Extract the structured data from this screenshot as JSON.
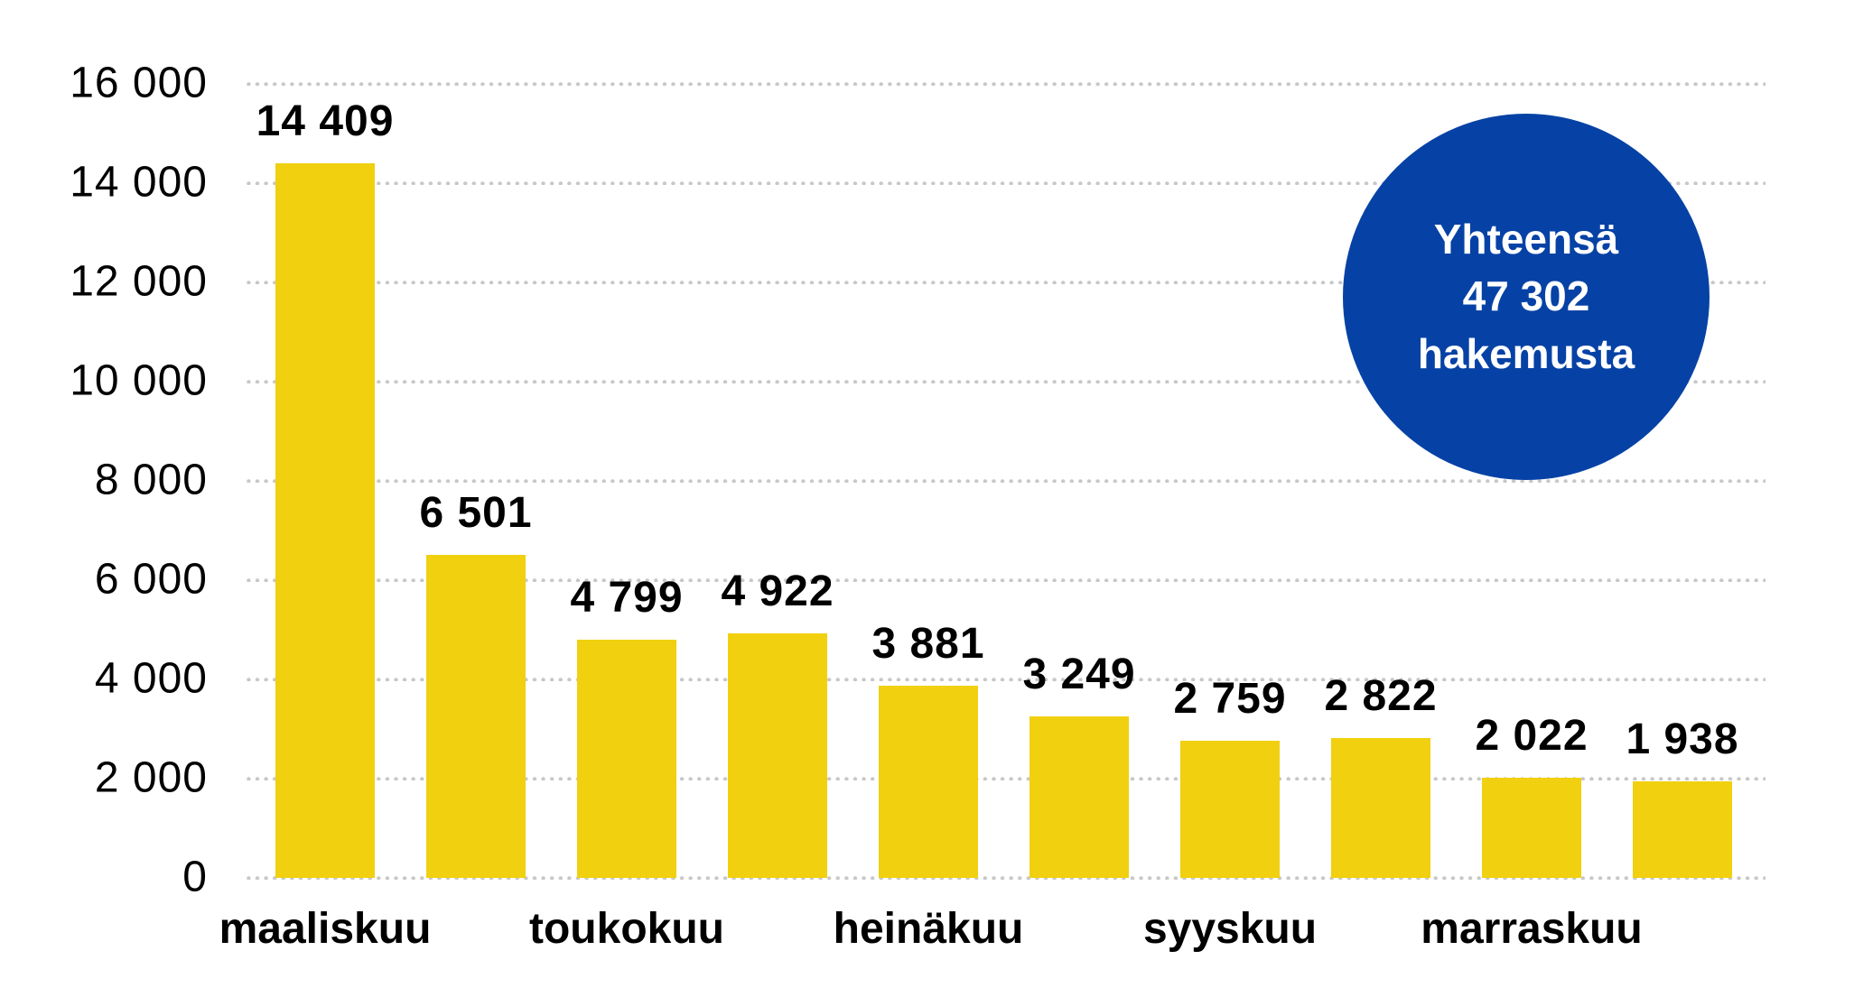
{
  "chart_data": {
    "type": "bar",
    "title": "",
    "bar_color": "#F1D00F",
    "grid_color": "#C7C7C7",
    "text_color": "#000000",
    "background": "#FFFFFF",
    "ylim": [
      0,
      16000
    ],
    "y_tick_step": 2000,
    "grid": "dotted-horizontal",
    "legend": "none",
    "y_tick_labels": [
      "16 000",
      "14 000",
      "12 000",
      "10 000",
      "8 000",
      "6 000",
      "4 000",
      "2 000",
      "0"
    ],
    "bars": [
      {
        "value": 14409,
        "label": "14 409"
      },
      {
        "value": 6501,
        "label": "6 501"
      },
      {
        "value": 4799,
        "label": "4 799"
      },
      {
        "value": 4922,
        "label": "4 922"
      },
      {
        "value": 3881,
        "label": "3 881"
      },
      {
        "value": 3249,
        "label": "3 249"
      },
      {
        "value": 2759,
        "label": "2 759"
      },
      {
        "value": 2822,
        "label": "2 822"
      },
      {
        "value": 2022,
        "label": "2 022"
      },
      {
        "value": 1938,
        "label": "1 938"
      }
    ],
    "x_ticks": [
      {
        "bar_index": 0,
        "label": "maaliskuu"
      },
      {
        "bar_index": 2,
        "label": "toukokuu"
      },
      {
        "bar_index": 4,
        "label": "heinäkuu"
      },
      {
        "bar_index": 6,
        "label": "syyskuu"
      },
      {
        "bar_index": 8,
        "label": "marraskuu"
      }
    ],
    "annotation": {
      "shape": "circle",
      "total": 47302,
      "color": "#0642A5",
      "text_color": "#FFFFFF",
      "lines": [
        "Yhteensä",
        "47 302",
        "hakemusta"
      ]
    }
  }
}
